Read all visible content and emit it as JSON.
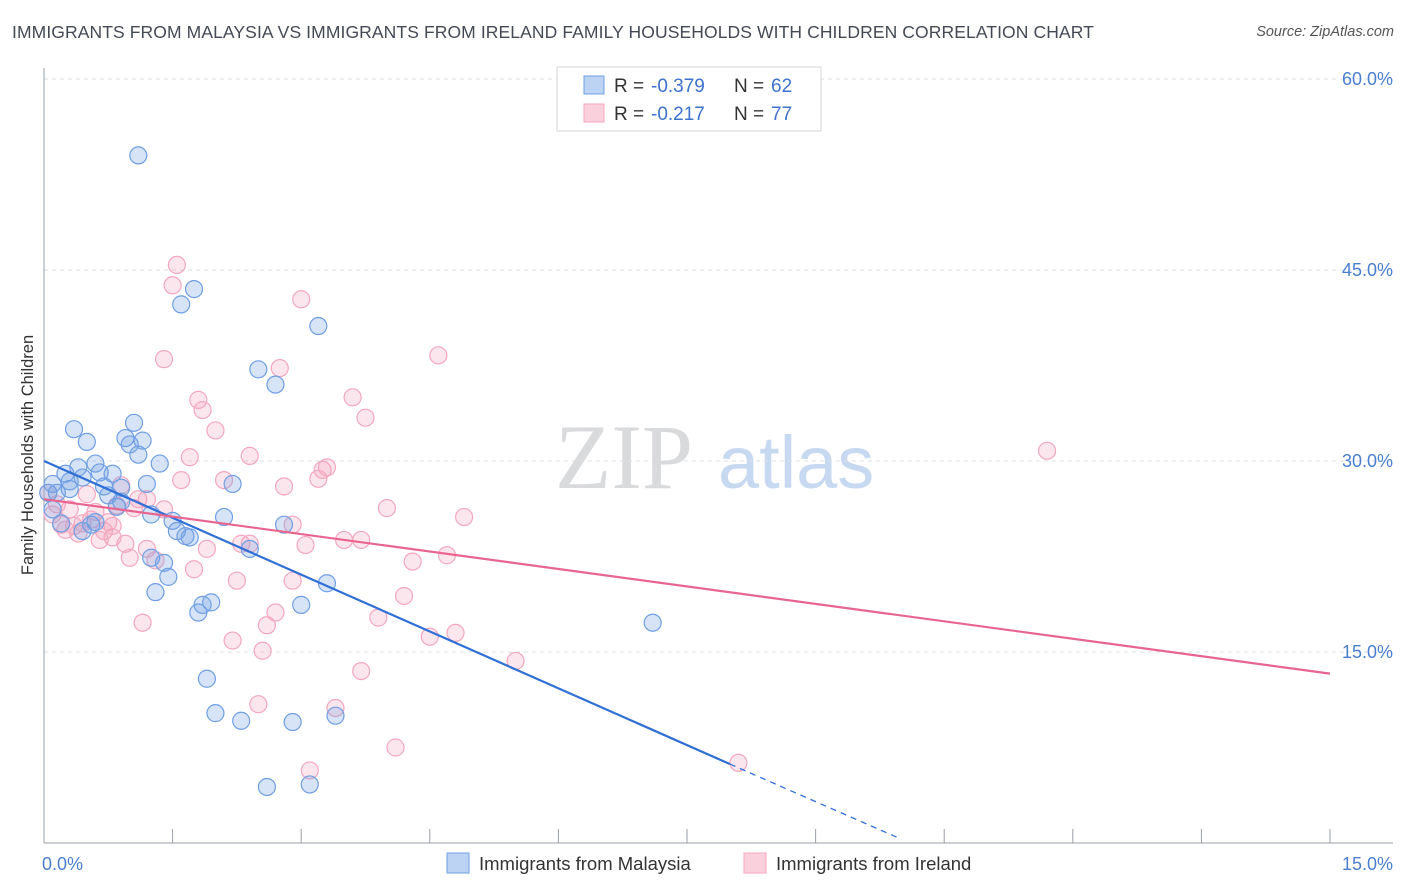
{
  "title": "IMMIGRANTS FROM MALAYSIA VS IMMIGRANTS FROM IRELAND FAMILY HOUSEHOLDS WITH CHILDREN CORRELATION CHART",
  "source": "Source: ZipAtlas.com",
  "watermark": {
    "zip": "ZIP",
    "atlas": "atlas"
  },
  "colors": {
    "malaysia": "#6f9fe3",
    "malaysia_line": "#2f6fd6",
    "ireland": "#f4a7bf",
    "ireland_line": "#e8658f",
    "tick": "#4a7fd0"
  },
  "legend": {
    "rows": [
      {
        "r_label": "R =",
        "r_value": "-0.379",
        "n_label": "N =",
        "n_value": "62"
      },
      {
        "r_label": "R =",
        "r_value": "-0.217",
        "n_label": "N =",
        "n_value": "77"
      }
    ]
  },
  "chart_data": {
    "type": "scatter",
    "title": "IMMIGRANTS FROM MALAYSIA VS IMMIGRANTS FROM IRELAND FAMILY HOUSEHOLDS WITH CHILDREN CORRELATION CHART",
    "xlabel": "",
    "ylabel": "Family Households with Children",
    "xlim": [
      0,
      15
    ],
    "ylim": [
      0,
      60
    ],
    "x_tick_labels": [
      "0.0%",
      "15.0%"
    ],
    "y_ticks": [
      15,
      30,
      45,
      60
    ],
    "y_tick_labels": [
      "15.0%",
      "30.0%",
      "45.0%",
      "60.0%"
    ],
    "series": [
      {
        "name": "Immigrants from Malaysia",
        "r": -0.379,
        "n": 62,
        "trend": {
          "x0": 0.0,
          "y0": 30.0,
          "x1": 8.0,
          "y1": 6.2,
          "dash_to_x": 10.0,
          "dash_to_y": 0.3
        },
        "points": [
          [
            0.1,
            28.2
          ],
          [
            0.15,
            27.5
          ],
          [
            0.2,
            25.1
          ],
          [
            0.25,
            29.0
          ],
          [
            0.3,
            28.4
          ],
          [
            0.35,
            32.5
          ],
          [
            0.4,
            29.5
          ],
          [
            0.45,
            28.7
          ],
          [
            0.5,
            31.5
          ],
          [
            0.55,
            25.0
          ],
          [
            0.6,
            29.8
          ],
          [
            0.65,
            29.1
          ],
          [
            0.7,
            28.0
          ],
          [
            0.75,
            27.3
          ],
          [
            0.8,
            29.0
          ],
          [
            0.85,
            26.4
          ],
          [
            0.9,
            27.9
          ],
          [
            0.95,
            31.8
          ],
          [
            1.0,
            31.3
          ],
          [
            1.05,
            33.0
          ],
          [
            1.1,
            30.5
          ],
          [
            1.15,
            31.6
          ],
          [
            1.2,
            28.2
          ],
          [
            1.25,
            22.4
          ],
          [
            1.3,
            19.7
          ],
          [
            1.35,
            29.8
          ],
          [
            1.4,
            22.0
          ],
          [
            1.45,
            20.9
          ],
          [
            1.5,
            25.3
          ],
          [
            1.55,
            24.5
          ],
          [
            1.6,
            42.3
          ],
          [
            1.65,
            24.1
          ],
          [
            1.7,
            24.0
          ],
          [
            1.75,
            43.5
          ],
          [
            1.8,
            18.1
          ],
          [
            1.85,
            18.7
          ],
          [
            1.9,
            12.9
          ],
          [
            1.95,
            18.9
          ],
          [
            2.0,
            10.2
          ],
          [
            2.1,
            25.6
          ],
          [
            2.2,
            28.2
          ],
          [
            2.3,
            9.6
          ],
          [
            2.4,
            23.1
          ],
          [
            2.5,
            37.2
          ],
          [
            2.6,
            4.4
          ],
          [
            2.7,
            36.0
          ],
          [
            2.8,
            25.0
          ],
          [
            2.9,
            9.5
          ],
          [
            3.0,
            18.7
          ],
          [
            3.1,
            4.6
          ],
          [
            3.2,
            40.6
          ],
          [
            3.3,
            20.4
          ],
          [
            3.4,
            10.0
          ],
          [
            1.1,
            54.0
          ],
          [
            0.05,
            27.5
          ],
          [
            0.1,
            26.2
          ],
          [
            7.1,
            17.3
          ],
          [
            0.9,
            26.8
          ],
          [
            0.6,
            25.2
          ],
          [
            1.25,
            25.8
          ],
          [
            0.3,
            27.8
          ],
          [
            0.45,
            24.5
          ]
        ]
      },
      {
        "name": "Immigrants from Ireland",
        "r": -0.217,
        "n": 77,
        "trend": {
          "x0": 0.0,
          "y0": 27.0,
          "x1": 15.0,
          "y1": 13.3
        },
        "points": [
          [
            0.05,
            27.5
          ],
          [
            0.1,
            25.8
          ],
          [
            0.15,
            26.6
          ],
          [
            0.2,
            25.0
          ],
          [
            0.25,
            24.6
          ],
          [
            0.3,
            26.2
          ],
          [
            0.35,
            24.9
          ],
          [
            0.4,
            24.3
          ],
          [
            0.45,
            25.1
          ],
          [
            0.5,
            27.4
          ],
          [
            0.55,
            25.4
          ],
          [
            0.6,
            26.0
          ],
          [
            0.65,
            23.8
          ],
          [
            0.7,
            24.5
          ],
          [
            0.75,
            25.2
          ],
          [
            0.8,
            24.0
          ],
          [
            0.85,
            26.5
          ],
          [
            0.9,
            28.1
          ],
          [
            0.95,
            23.5
          ],
          [
            1.0,
            22.4
          ],
          [
            1.05,
            26.3
          ],
          [
            1.1,
            27.0
          ],
          [
            1.15,
            17.3
          ],
          [
            1.2,
            23.1
          ],
          [
            1.3,
            22.2
          ],
          [
            1.4,
            38.0
          ],
          [
            1.5,
            43.8
          ],
          [
            1.55,
            45.4
          ],
          [
            1.6,
            28.5
          ],
          [
            1.7,
            30.3
          ],
          [
            1.75,
            21.5
          ],
          [
            1.8,
            34.8
          ],
          [
            1.85,
            34.0
          ],
          [
            1.9,
            23.1
          ],
          [
            2.0,
            32.4
          ],
          [
            2.1,
            28.5
          ],
          [
            2.2,
            15.9
          ],
          [
            2.25,
            20.6
          ],
          [
            2.3,
            23.5
          ],
          [
            2.4,
            30.4
          ],
          [
            2.5,
            10.9
          ],
          [
            2.55,
            15.1
          ],
          [
            2.6,
            17.1
          ],
          [
            2.7,
            18.1
          ],
          [
            2.75,
            37.3
          ],
          [
            2.8,
            28.0
          ],
          [
            2.9,
            20.6
          ],
          [
            3.0,
            42.7
          ],
          [
            3.05,
            23.4
          ],
          [
            3.1,
            5.7
          ],
          [
            3.2,
            28.6
          ],
          [
            3.3,
            29.5
          ],
          [
            3.4,
            10.6
          ],
          [
            3.5,
            23.8
          ],
          [
            3.6,
            35.0
          ],
          [
            3.7,
            13.5
          ],
          [
            3.75,
            33.4
          ],
          [
            3.9,
            17.7
          ],
          [
            4.0,
            26.3
          ],
          [
            4.1,
            7.5
          ],
          [
            4.2,
            19.4
          ],
          [
            4.3,
            22.1
          ],
          [
            4.5,
            16.2
          ],
          [
            4.6,
            38.3
          ],
          [
            4.7,
            22.6
          ],
          [
            4.8,
            16.5
          ],
          [
            4.9,
            25.6
          ],
          [
            5.5,
            14.3
          ],
          [
            8.1,
            6.3
          ],
          [
            11.7,
            30.8
          ],
          [
            3.7,
            23.8
          ],
          [
            1.2,
            27.0
          ],
          [
            1.4,
            26.2
          ],
          [
            2.4,
            23.5
          ],
          [
            0.8,
            24.9
          ],
          [
            3.25,
            29.3
          ],
          [
            2.9,
            25.0
          ]
        ]
      }
    ]
  },
  "bottom_legend": [
    "Immigrants from Malaysia",
    "Immigrants from Ireland"
  ]
}
